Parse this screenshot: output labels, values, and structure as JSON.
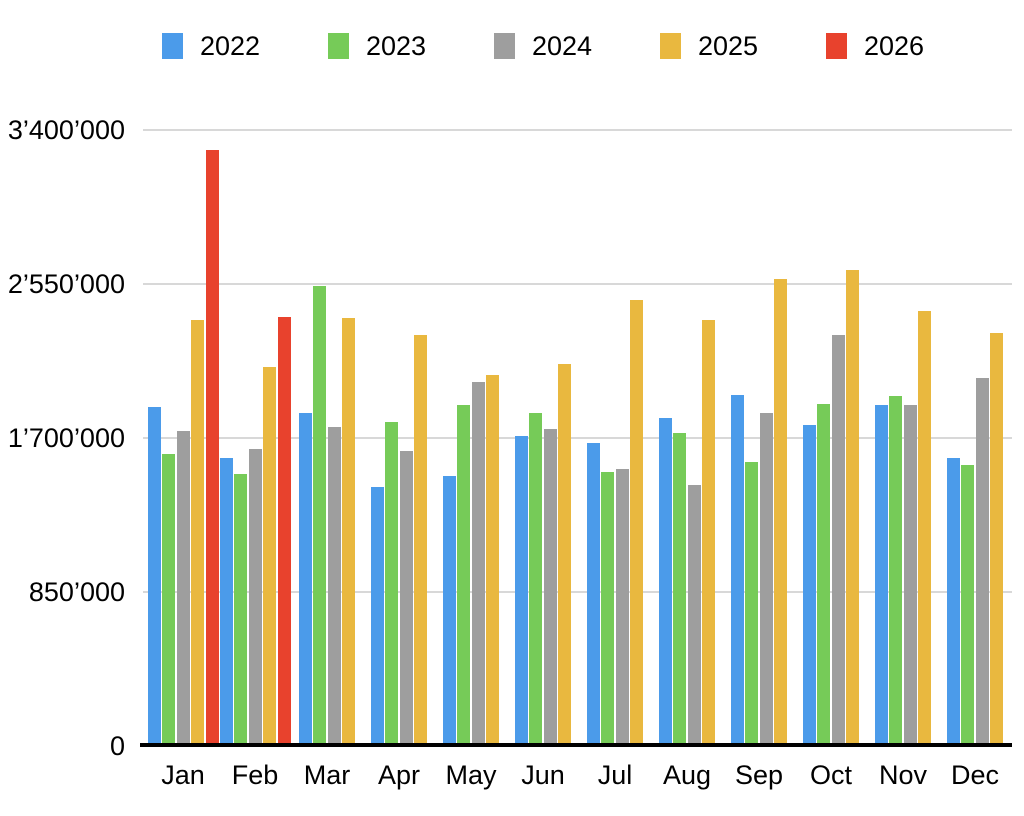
{
  "chart_data": {
    "type": "bar",
    "title": "",
    "xlabel": "",
    "ylabel": "",
    "categories": [
      "Jan",
      "Feb",
      "Mar",
      "Apr",
      "May",
      "Jun",
      "Jul",
      "Aug",
      "Sep",
      "Oct",
      "Nov",
      "Dec"
    ],
    "series": [
      {
        "name": "2022",
        "color": "#4b9bea",
        "values": [
          1870000,
          1590000,
          1840000,
          1430000,
          1490000,
          1710000,
          1670000,
          1810000,
          1940000,
          1770000,
          1880000,
          1590000
        ]
      },
      {
        "name": "2023",
        "color": "#76cb58",
        "values": [
          1610000,
          1500000,
          2540000,
          1790000,
          1880000,
          1840000,
          1510000,
          1730000,
          1570000,
          1890000,
          1930000,
          1550000
        ]
      },
      {
        "name": "2024",
        "color": "#9e9e9e",
        "values": [
          1740000,
          1640000,
          1760000,
          1630000,
          2010000,
          1750000,
          1530000,
          1440000,
          1840000,
          2270000,
          1880000,
          2030000
        ]
      },
      {
        "name": "2025",
        "color": "#e9b83f",
        "values": [
          2350000,
          2090000,
          2360000,
          2270000,
          2050000,
          2110000,
          2460000,
          2350000,
          2580000,
          2630000,
          2400000,
          2280000
        ]
      },
      {
        "name": "2026",
        "color": "#e8422d",
        "values": [
          3290000,
          2370000,
          null,
          null,
          null,
          null,
          null,
          null,
          null,
          null,
          null,
          null
        ]
      }
    ],
    "ylim": [
      0,
      3400000
    ],
    "yticks": [
      {
        "value": 0,
        "label": "0"
      },
      {
        "value": 850000,
        "label": "850’000"
      },
      {
        "value": 1700000,
        "label": "1’700’000"
      },
      {
        "value": 2550000,
        "label": "2’550’000"
      },
      {
        "value": 3400000,
        "label": "3’400’000"
      }
    ],
    "grid": true,
    "legend_position": "top",
    "gridline_color": "#d8d8d8",
    "axis_line_color": "#000000"
  }
}
